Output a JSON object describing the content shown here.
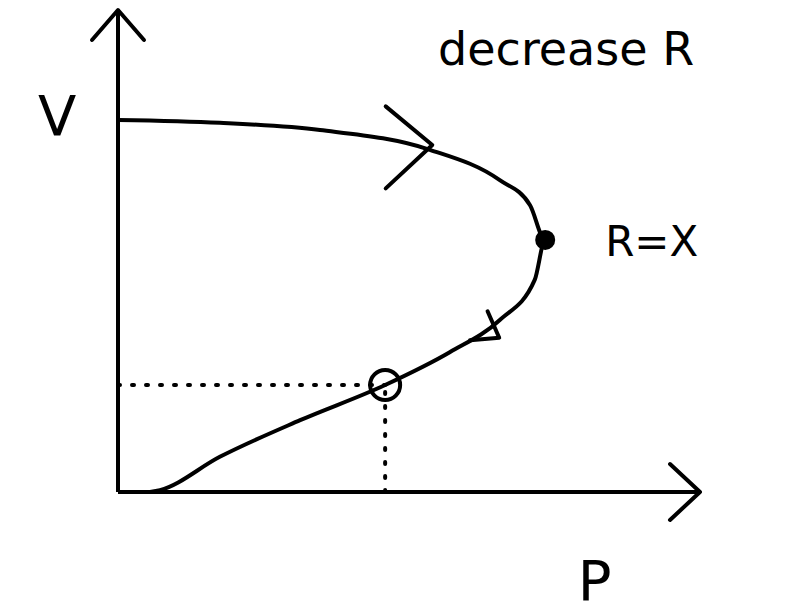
{
  "chart_data": {
    "type": "line",
    "x_label": "P",
    "y_label": "V",
    "annotations": [
      "decrease R"
    ],
    "x": [
      0,
      1.75,
      3.47,
      5.36,
      6.56,
      7.08,
      7.34,
      7.16,
      6.56,
      5.7,
      4.59,
      3.13,
      1.75,
      0.72,
      0.55
    ],
    "values": [
      7.72,
      7.66,
      7.51,
      7.1,
      6.47,
      5.95,
      5.23,
      4.4,
      3.57,
      2.9,
      2.22,
      1.49,
      0.73,
      0.04,
      0
    ],
    "color": "#000000",
    "xlim": [
      0,
      10
    ],
    "ylim": [
      0,
      10
    ],
    "tick_labels": false,
    "grid": false,
    "points": [
      {
        "x": 7.34,
        "y": 5.23,
        "marker": "filled",
        "label": "R=X"
      },
      {
        "x": 4.59,
        "y": 2.22,
        "marker": "open",
        "line_style": "dotted"
      }
    ]
  }
}
